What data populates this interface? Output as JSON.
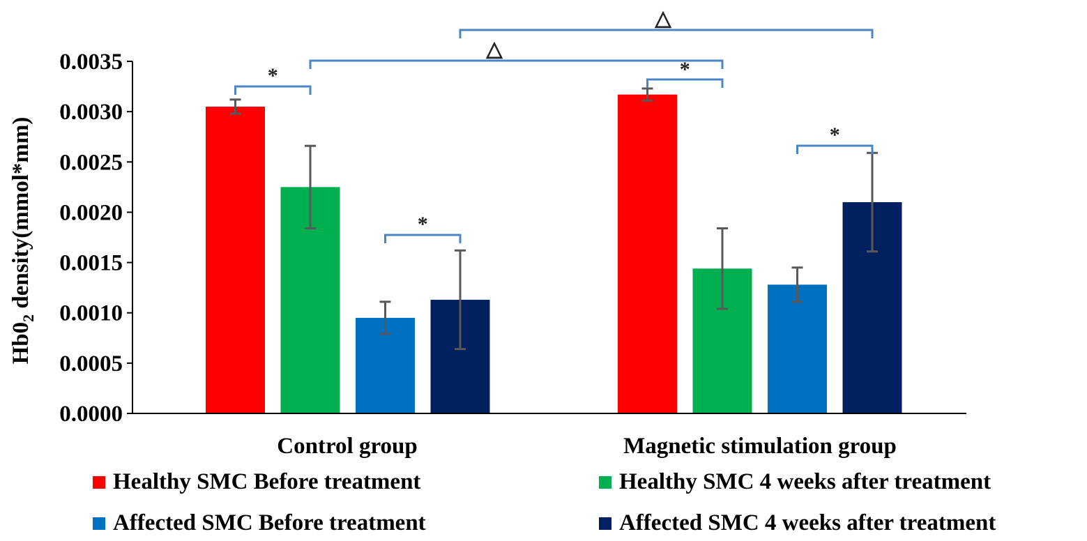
{
  "chart_data": {
    "type": "bar",
    "ylabel_main": "Hb0",
    "ylabel_sub": "2",
    "ylabel_rest": " density(mmol*mm)",
    "categories": [
      "Control group",
      "Magnetic stimulation group"
    ],
    "ylim": [
      0,
      0.0035
    ],
    "yticks": [
      "0.0000",
      "0.0005",
      "0.0010",
      "0.0015",
      "0.0020",
      "0.0025",
      "0.0030",
      "0.0035"
    ],
    "series": [
      {
        "name": "Healthy SMC Before treatment",
        "color": "#ff0000",
        "values": [
          0.00305,
          0.00317
        ],
        "errors": [
          7e-05,
          6e-05
        ]
      },
      {
        "name": "Healthy SMC 4 weeks after treatment",
        "color": "#00b050",
        "values": [
          0.00225,
          0.00144
        ],
        "errors": [
          0.00041,
          0.0004
        ]
      },
      {
        "name": "Affected SMC Before treatment",
        "color": "#0070c0",
        "values": [
          0.00095,
          0.00128
        ],
        "errors": [
          0.00016,
          0.00017
        ]
      },
      {
        "name": "Affected SMC 4 weeks after treatment",
        "color": "#002060",
        "values": [
          0.00113,
          0.0021
        ],
        "errors": [
          0.00049,
          0.00049
        ]
      }
    ],
    "significance": [
      {
        "symbol": "*",
        "group": 0,
        "from_series": 0,
        "to_series": 1
      },
      {
        "symbol": "*",
        "group": 0,
        "from_series": 2,
        "to_series": 3
      },
      {
        "symbol": "*",
        "group": 1,
        "from_series": 0,
        "to_series": 1
      },
      {
        "symbol": "*",
        "group": 1,
        "from_series": 2,
        "to_series": 3
      },
      {
        "symbol": "△",
        "between": "Healthy SMC 4 weeks after treatment (Control group vs Magnetic stimulation group)"
      },
      {
        "symbol": "△",
        "between": "Affected SMC 4 weeks after treatment (Control group vs Magnetic stimulation group)"
      }
    ],
    "bracket_color": "#4a86c5",
    "error_color": "#595959",
    "legend_position": "bottom"
  }
}
